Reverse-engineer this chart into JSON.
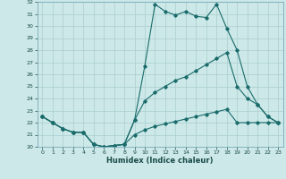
{
  "xlabel": "Humidex (Indice chaleur)",
  "bg_color": "#cce8e8",
  "line_color": "#1a6b6b",
  "grid_color": "#aacece",
  "xlim": [
    -0.5,
    23.5
  ],
  "ylim": [
    20,
    32
  ],
  "xticks": [
    0,
    1,
    2,
    3,
    4,
    5,
    6,
    7,
    8,
    9,
    10,
    11,
    12,
    13,
    14,
    15,
    16,
    17,
    18,
    19,
    20,
    21,
    22,
    23
  ],
  "yticks": [
    20,
    21,
    22,
    23,
    24,
    25,
    26,
    27,
    28,
    29,
    30,
    31,
    32
  ],
  "line1_x": [
    0,
    1,
    2,
    3,
    4,
    5,
    6,
    7,
    8,
    9,
    10,
    11,
    12,
    13,
    14,
    15,
    16,
    17,
    18,
    19,
    20,
    21,
    22,
    23
  ],
  "line1_y": [
    22.5,
    22.0,
    21.5,
    21.2,
    21.2,
    20.2,
    20.0,
    20.1,
    20.2,
    22.2,
    26.7,
    31.8,
    31.2,
    30.9,
    31.2,
    30.8,
    30.7,
    31.8,
    29.8,
    28.0,
    25.0,
    23.5,
    22.5,
    22.0
  ],
  "line2_x": [
    0,
    1,
    2,
    3,
    4,
    5,
    6,
    7,
    8,
    9,
    10,
    11,
    12,
    13,
    14,
    15,
    16,
    17,
    18,
    19,
    20,
    21,
    22,
    23
  ],
  "line2_y": [
    22.5,
    22.0,
    21.5,
    21.2,
    21.2,
    20.2,
    20.0,
    20.1,
    20.2,
    22.2,
    23.8,
    24.5,
    25.0,
    25.5,
    25.8,
    26.3,
    26.8,
    27.3,
    27.8,
    25.0,
    24.0,
    23.5,
    22.5,
    22.0
  ],
  "line3_x": [
    0,
    1,
    2,
    3,
    4,
    5,
    6,
    7,
    8,
    9,
    10,
    11,
    12,
    13,
    14,
    15,
    16,
    17,
    18,
    19,
    20,
    21,
    22,
    23
  ],
  "line3_y": [
    22.5,
    22.0,
    21.5,
    21.2,
    21.2,
    20.2,
    20.0,
    20.1,
    20.2,
    21.0,
    21.4,
    21.7,
    21.9,
    22.1,
    22.3,
    22.5,
    22.7,
    22.9,
    23.1,
    22.0,
    22.0,
    22.0,
    22.0,
    22.0
  ]
}
